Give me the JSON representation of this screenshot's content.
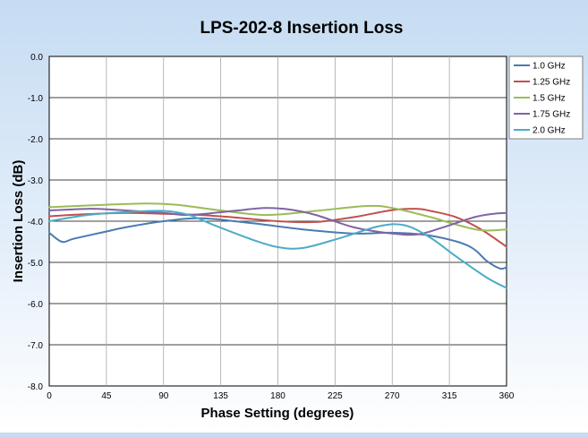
{
  "chart_data": {
    "type": "line",
    "title": "LPS-202-8 Insertion Loss",
    "xlabel": "Phase Setting (degrees)",
    "ylabel": "Insertion Loss (dB)",
    "xlim": [
      0,
      360
    ],
    "ylim": [
      -8.0,
      0.0
    ],
    "x_ticks": [
      0,
      45,
      90,
      135,
      180,
      225,
      270,
      315,
      360
    ],
    "x_tick_labels": [
      "0",
      "45",
      "90",
      "135",
      "180",
      "225",
      "270",
      "315",
      "360"
    ],
    "y_ticks": [
      0,
      -1,
      -2,
      -3,
      -4,
      -5,
      -6,
      -7,
      -8
    ],
    "y_tick_labels": [
      "0.0",
      "-1.0",
      "-2.0",
      "-3.0",
      "-4.0",
      "-5.0",
      "-6.0",
      "-7.0",
      "-8.0"
    ],
    "grid": true,
    "legend_position": "top-right",
    "series": [
      {
        "name": "1.0 GHz",
        "color": "#4a7ab0",
        "x": [
          0,
          10,
          20,
          45,
          60,
          90,
          120,
          160,
          200,
          240,
          270,
          300,
          330,
          345,
          355,
          360
        ],
        "y": [
          -4.28,
          -4.5,
          -4.42,
          -4.25,
          -4.15,
          -4.0,
          -3.93,
          -4.05,
          -4.2,
          -4.3,
          -4.28,
          -4.35,
          -4.6,
          -4.98,
          -5.15,
          -5.12
        ]
      },
      {
        "name": "1.25 GHz",
        "color": "#c0504d",
        "x": [
          0,
          30,
          60,
          90,
          120,
          150,
          180,
          210,
          240,
          270,
          290,
          300,
          320,
          340,
          360
        ],
        "y": [
          -3.88,
          -3.83,
          -3.8,
          -3.82,
          -3.85,
          -3.92,
          -4.0,
          -4.02,
          -3.9,
          -3.73,
          -3.7,
          -3.75,
          -3.9,
          -4.2,
          -4.62
        ]
      },
      {
        "name": "1.5 GHz",
        "color": "#9bbb59",
        "x": [
          0,
          30,
          75,
          100,
          130,
          170,
          210,
          250,
          270,
          300,
          320,
          340,
          360
        ],
        "y": [
          -3.66,
          -3.62,
          -3.57,
          -3.6,
          -3.72,
          -3.85,
          -3.75,
          -3.63,
          -3.68,
          -3.9,
          -4.08,
          -4.22,
          -4.2
        ]
      },
      {
        "name": "1.75 GHz",
        "color": "#8064a2",
        "x": [
          0,
          30,
          50,
          90,
          110,
          145,
          170,
          190,
          210,
          240,
          270,
          290,
          310,
          335,
          350,
          360
        ],
        "y": [
          -3.74,
          -3.7,
          -3.72,
          -3.8,
          -3.85,
          -3.75,
          -3.68,
          -3.72,
          -3.85,
          -4.15,
          -4.3,
          -4.32,
          -4.15,
          -3.9,
          -3.82,
          -3.8
        ]
      },
      {
        "name": "2.0 GHz",
        "color": "#4bacc6",
        "x": [
          0,
          30,
          60,
          90,
          110,
          130,
          160,
          180,
          200,
          230,
          260,
          280,
          300,
          320,
          345,
          360
        ],
        "y": [
          -4.0,
          -3.85,
          -3.78,
          -3.75,
          -3.85,
          -4.1,
          -4.45,
          -4.63,
          -4.65,
          -4.4,
          -4.12,
          -4.1,
          -4.4,
          -4.85,
          -5.38,
          -5.62
        ]
      }
    ]
  }
}
